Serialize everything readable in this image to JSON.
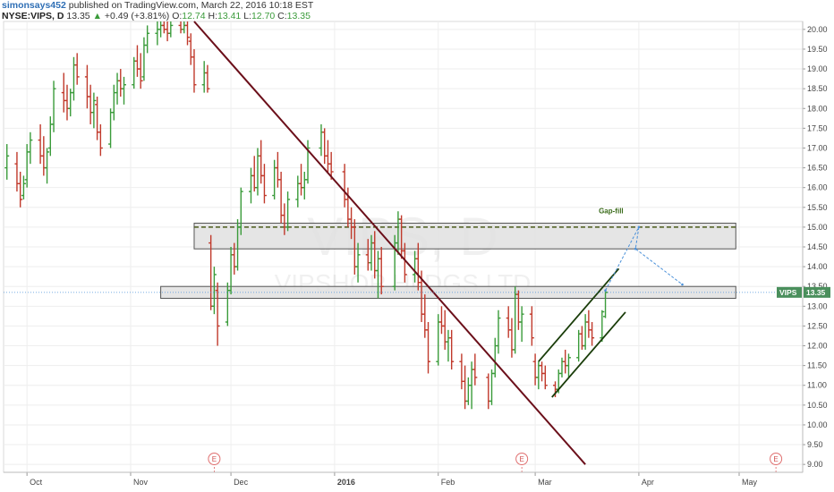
{
  "header": {
    "username": "simonsays452",
    "published_text": " published on TradingView.com, March 22, 2016 10:18 EST",
    "symbol": "NYSE:VIPS, D",
    "last": "13.35",
    "change": "+0.49 (+3.81%)",
    "o_label": "O:",
    "o_value": "12.74",
    "h_label": "H:",
    "h_value": "13.41",
    "l_label": "L:",
    "l_value": "12.70",
    "c_label": "C:",
    "c_value": "13.35"
  },
  "watermark": {
    "symbol": "VIPS, D",
    "name": "VIPSHOP HLDGS LTD"
  },
  "price_label": {
    "symbol": "VIPS",
    "price": "13.35"
  },
  "annotation": {
    "gap_fill": "Gap-fill"
  },
  "event_marker": "E",
  "colors": {
    "up": "#3a9b3a",
    "down": "#c0392b",
    "trendline": "#6b0f1a",
    "channel": "#1a3d0a",
    "zone_fill": "#e0e0e0",
    "projection": "#4a90d9",
    "price_tag": "#4a8f5c"
  },
  "chart_data": {
    "type": "ohlc-bar",
    "title": "",
    "ylim": [
      8.8,
      20.2
    ],
    "xlim": [
      "2015-09-24",
      "2016-05-20"
    ],
    "y_ticks": [
      "9.00",
      "9.50",
      "10.00",
      "10.50",
      "11.00",
      "11.50",
      "12.00",
      "12.50",
      "13.00",
      "13.50",
      "14.00",
      "14.50",
      "15.00",
      "15.50",
      "16.00",
      "16.50",
      "17.00",
      "17.50",
      "18.00",
      "18.50",
      "19.00",
      "19.50",
      "20.00"
    ],
    "x_ticks": [
      {
        "label": "Oct",
        "date": "2015-10-01"
      },
      {
        "label": "Nov",
        "date": "2015-11-01"
      },
      {
        "label": "Dec",
        "date": "2015-12-01"
      },
      {
        "label": "2016",
        "date": "2016-01-01"
      },
      {
        "label": "Feb",
        "date": "2016-02-01"
      },
      {
        "label": "Mar",
        "date": "2016-03-01"
      },
      {
        "label": "Apr",
        "date": "2016-04-01"
      },
      {
        "label": "May",
        "date": "2016-05-01"
      }
    ],
    "series": [
      {
        "date": "2015-09-25",
        "open": 16.5,
        "high": 17.1,
        "low": 16.2,
        "close": 16.8
      },
      {
        "date": "2015-09-28",
        "open": 16.6,
        "high": 16.9,
        "low": 15.9,
        "close": 16.1
      },
      {
        "date": "2015-09-29",
        "open": 16.1,
        "high": 16.4,
        "low": 15.5,
        "close": 15.7
      },
      {
        "date": "2015-09-30",
        "open": 15.8,
        "high": 16.3,
        "low": 15.7,
        "close": 16.1
      },
      {
        "date": "2015-10-01",
        "open": 16.2,
        "high": 17.1,
        "low": 16.0,
        "close": 16.9
      },
      {
        "date": "2015-10-02",
        "open": 16.9,
        "high": 17.4,
        "low": 16.6,
        "close": 17.2
      },
      {
        "date": "2015-10-05",
        "open": 17.2,
        "high": 17.6,
        "low": 16.6,
        "close": 16.8
      },
      {
        "date": "2015-10-06",
        "open": 16.8,
        "high": 17.3,
        "low": 16.3,
        "close": 16.5
      },
      {
        "date": "2015-10-07",
        "open": 16.5,
        "high": 17.0,
        "low": 16.1,
        "close": 16.9
      },
      {
        "date": "2015-10-08",
        "open": 17.0,
        "high": 17.8,
        "low": 16.8,
        "close": 17.6
      },
      {
        "date": "2015-10-09",
        "open": 17.6,
        "high": 18.7,
        "low": 17.4,
        "close": 18.5
      },
      {
        "date": "2015-10-12",
        "open": 18.4,
        "high": 18.9,
        "low": 17.9,
        "close": 18.2
      },
      {
        "date": "2015-10-13",
        "open": 18.2,
        "high": 18.6,
        "low": 17.7,
        "close": 18.0
      },
      {
        "date": "2015-10-14",
        "open": 18.0,
        "high": 18.5,
        "low": 17.8,
        "close": 18.4
      },
      {
        "date": "2015-10-15",
        "open": 18.4,
        "high": 19.3,
        "low": 18.2,
        "close": 19.1
      },
      {
        "date": "2015-10-16",
        "open": 19.1,
        "high": 19.4,
        "low": 18.6,
        "close": 18.8
      },
      {
        "date": "2015-10-19",
        "open": 18.8,
        "high": 19.1,
        "low": 18.0,
        "close": 18.3
      },
      {
        "date": "2015-10-20",
        "open": 18.3,
        "high": 18.6,
        "low": 17.6,
        "close": 17.9
      },
      {
        "date": "2015-10-21",
        "open": 17.9,
        "high": 18.4,
        "low": 17.5,
        "close": 18.2
      },
      {
        "date": "2015-10-22",
        "open": 18.1,
        "high": 18.3,
        "low": 17.2,
        "close": 17.4
      },
      {
        "date": "2015-10-23",
        "open": 17.4,
        "high": 17.6,
        "low": 16.8,
        "close": 17.0
      },
      {
        "date": "2015-10-26",
        "open": 17.1,
        "high": 18.0,
        "low": 17.0,
        "close": 17.9
      },
      {
        "date": "2015-10-27",
        "open": 17.9,
        "high": 18.6,
        "low": 17.7,
        "close": 18.4
      },
      {
        "date": "2015-10-28",
        "open": 18.4,
        "high": 18.9,
        "low": 18.1,
        "close": 18.7
      },
      {
        "date": "2015-10-29",
        "open": 18.7,
        "high": 19.0,
        "low": 18.3,
        "close": 18.5
      },
      {
        "date": "2015-10-30",
        "open": 18.5,
        "high": 18.8,
        "low": 18.1,
        "close": 18.6
      },
      {
        "date": "2015-11-02",
        "open": 18.6,
        "high": 19.3,
        "low": 18.5,
        "close": 19.2
      },
      {
        "date": "2015-11-03",
        "open": 19.2,
        "high": 19.6,
        "low": 18.8,
        "close": 19.0
      },
      {
        "date": "2015-11-04",
        "open": 19.0,
        "high": 19.4,
        "low": 18.5,
        "close": 18.7
      },
      {
        "date": "2015-11-05",
        "open": 18.8,
        "high": 19.8,
        "low": 18.7,
        "close": 19.6
      },
      {
        "date": "2015-11-06",
        "open": 19.6,
        "high": 20.1,
        "low": 19.4,
        "close": 19.9
      },
      {
        "date": "2015-11-09",
        "open": 19.9,
        "high": 20.2,
        "low": 19.6,
        "close": 20.0
      },
      {
        "date": "2015-11-10",
        "open": 20.0,
        "high": 20.2,
        "low": 19.8,
        "close": 20.1
      },
      {
        "date": "2015-11-11",
        "open": 20.1,
        "high": 20.2,
        "low": 19.9,
        "close": 20.0
      },
      {
        "date": "2015-11-12",
        "open": 20.0,
        "high": 20.2,
        "low": 19.7,
        "close": 19.9
      },
      {
        "date": "2015-11-13",
        "open": 19.9,
        "high": 20.2,
        "low": 19.8,
        "close": 20.1
      },
      {
        "date": "2015-11-16",
        "open": 20.1,
        "high": 20.2,
        "low": 19.9,
        "close": 20.0
      },
      {
        "date": "2015-11-17",
        "open": 20.0,
        "high": 20.2,
        "low": 19.9,
        "close": 20.1
      },
      {
        "date": "2015-11-18",
        "open": 20.1,
        "high": 20.2,
        "low": 19.6,
        "close": 19.8
      },
      {
        "date": "2015-11-19",
        "open": 19.7,
        "high": 19.9,
        "low": 19.1,
        "close": 19.3
      },
      {
        "date": "2015-11-20",
        "open": 19.3,
        "high": 19.5,
        "low": 18.4,
        "close": 18.6
      },
      {
        "date": "2015-11-23",
        "open": 18.6,
        "high": 19.2,
        "low": 18.4,
        "close": 18.9
      },
      {
        "date": "2015-11-24",
        "open": 18.9,
        "high": 19.1,
        "low": 18.4,
        "close": 18.5
      },
      {
        "date": "2015-11-25",
        "open": 14.6,
        "high": 14.8,
        "low": 12.9,
        "close": 13.0
      },
      {
        "date": "2015-11-26",
        "open": 13.0,
        "high": 14.0,
        "low": 12.8,
        "close": 13.8
      },
      {
        "date": "2015-11-27",
        "open": 13.4,
        "high": 13.6,
        "low": 12.0,
        "close": 12.5
      },
      {
        "date": "2015-11-30",
        "open": 12.6,
        "high": 13.6,
        "low": 12.5,
        "close": 13.4
      },
      {
        "date": "2015-12-01",
        "open": 13.4,
        "high": 14.5,
        "low": 13.3,
        "close": 14.3
      },
      {
        "date": "2015-12-02",
        "open": 14.3,
        "high": 14.6,
        "low": 13.8,
        "close": 14.0
      },
      {
        "date": "2015-12-03",
        "open": 14.0,
        "high": 15.2,
        "low": 13.9,
        "close": 15.0
      },
      {
        "date": "2015-12-04",
        "open": 15.0,
        "high": 16.0,
        "low": 14.8,
        "close": 15.9
      },
      {
        "date": "2015-12-07",
        "open": 15.9,
        "high": 16.5,
        "low": 15.6,
        "close": 16.3
      },
      {
        "date": "2015-12-08",
        "open": 16.3,
        "high": 16.8,
        "low": 15.9,
        "close": 16.0
      },
      {
        "date": "2015-12-09",
        "open": 16.0,
        "high": 17.0,
        "low": 15.8,
        "close": 16.8
      },
      {
        "date": "2015-12-10",
        "open": 16.8,
        "high": 17.2,
        "low": 16.1,
        "close": 16.3
      },
      {
        "date": "2015-12-11",
        "open": 16.3,
        "high": 16.6,
        "low": 15.6,
        "close": 15.8
      },
      {
        "date": "2015-12-14",
        "open": 15.8,
        "high": 16.7,
        "low": 15.7,
        "close": 16.5
      },
      {
        "date": "2015-12-15",
        "open": 16.5,
        "high": 16.9,
        "low": 16.0,
        "close": 16.2
      },
      {
        "date": "2015-12-16",
        "open": 16.2,
        "high": 16.4,
        "low": 15.1,
        "close": 15.3
      },
      {
        "date": "2015-12-17",
        "open": 15.3,
        "high": 15.6,
        "low": 14.8,
        "close": 15.0
      },
      {
        "date": "2015-12-18",
        "open": 15.0,
        "high": 15.9,
        "low": 14.9,
        "close": 15.7
      },
      {
        "date": "2015-12-21",
        "open": 15.7,
        "high": 16.3,
        "low": 15.5,
        "close": 16.1
      },
      {
        "date": "2015-12-22",
        "open": 16.1,
        "high": 16.6,
        "low": 15.8,
        "close": 16.0
      },
      {
        "date": "2015-12-23",
        "open": 16.0,
        "high": 16.4,
        "low": 15.7,
        "close": 16.2
      },
      {
        "date": "2015-12-24",
        "open": 16.2,
        "high": 17.2,
        "low": 16.1,
        "close": 17.0
      },
      {
        "date": "2015-12-28",
        "open": 17.0,
        "high": 17.6,
        "low": 16.8,
        "close": 17.4
      },
      {
        "date": "2015-12-29",
        "open": 17.4,
        "high": 17.5,
        "low": 16.6,
        "close": 16.8
      },
      {
        "date": "2015-12-30",
        "open": 16.8,
        "high": 17.2,
        "low": 16.4,
        "close": 16.6
      },
      {
        "date": "2015-12-31",
        "open": 16.6,
        "high": 16.9,
        "low": 16.2,
        "close": 16.4
      },
      {
        "date": "2016-01-04",
        "open": 16.4,
        "high": 16.6,
        "low": 15.5,
        "close": 15.7
      },
      {
        "date": "2016-01-05",
        "open": 15.7,
        "high": 16.0,
        "low": 15.0,
        "close": 15.2
      },
      {
        "date": "2016-01-06",
        "open": 15.2,
        "high": 15.5,
        "low": 14.7,
        "close": 15.0
      },
      {
        "date": "2016-01-07",
        "open": 15.0,
        "high": 15.2,
        "low": 13.8,
        "close": 14.0
      },
      {
        "date": "2016-01-08",
        "open": 14.0,
        "high": 14.6,
        "low": 13.6,
        "close": 14.3
      },
      {
        "date": "2016-01-11",
        "open": 14.3,
        "high": 14.7,
        "low": 13.9,
        "close": 14.1
      },
      {
        "date": "2016-01-12",
        "open": 14.1,
        "high": 14.8,
        "low": 13.9,
        "close": 14.6
      },
      {
        "date": "2016-01-13",
        "open": 14.6,
        "high": 14.9,
        "low": 13.7,
        "close": 13.9
      },
      {
        "date": "2016-01-14",
        "open": 13.9,
        "high": 14.4,
        "low": 13.2,
        "close": 14.2
      },
      {
        "date": "2016-01-15",
        "open": 14.2,
        "high": 14.5,
        "low": 13.3,
        "close": 13.5
      },
      {
        "date": "2016-01-19",
        "open": 13.5,
        "high": 14.8,
        "low": 13.4,
        "close": 14.6
      },
      {
        "date": "2016-01-20",
        "open": 14.6,
        "high": 15.4,
        "low": 14.3,
        "close": 15.2
      },
      {
        "date": "2016-01-21",
        "open": 15.2,
        "high": 15.3,
        "low": 14.2,
        "close": 14.4
      },
      {
        "date": "2016-01-22",
        "open": 14.4,
        "high": 14.6,
        "low": 13.6,
        "close": 13.8
      },
      {
        "date": "2016-01-25",
        "open": 13.8,
        "high": 14.4,
        "low": 13.6,
        "close": 14.2
      },
      {
        "date": "2016-01-26",
        "open": 14.2,
        "high": 14.6,
        "low": 13.4,
        "close": 13.6
      },
      {
        "date": "2016-01-27",
        "open": 13.6,
        "high": 13.9,
        "low": 12.6,
        "close": 12.8
      },
      {
        "date": "2016-01-28",
        "open": 12.8,
        "high": 13.3,
        "low": 12.2,
        "close": 12.4
      },
      {
        "date": "2016-01-29",
        "open": 12.4,
        "high": 12.6,
        "low": 11.3,
        "close": 11.6
      },
      {
        "date": "2016-02-01",
        "open": 11.6,
        "high": 12.8,
        "low": 11.5,
        "close": 12.6
      },
      {
        "date": "2016-02-02",
        "open": 12.6,
        "high": 13.0,
        "low": 12.3,
        "close": 12.5
      },
      {
        "date": "2016-02-03",
        "open": 12.5,
        "high": 12.9,
        "low": 11.9,
        "close": 12.1
      },
      {
        "date": "2016-02-04",
        "open": 12.1,
        "high": 12.4,
        "low": 11.6,
        "close": 12.2
      },
      {
        "date": "2016-02-05",
        "open": 12.2,
        "high": 12.4,
        "low": 11.4,
        "close": 11.6
      },
      {
        "date": "2016-02-08",
        "open": 11.6,
        "high": 11.8,
        "low": 10.9,
        "close": 11.1
      },
      {
        "date": "2016-02-09",
        "open": 11.1,
        "high": 11.5,
        "low": 10.4,
        "close": 10.6
      },
      {
        "date": "2016-02-10",
        "open": 10.6,
        "high": 11.2,
        "low": 10.5,
        "close": 11.0
      },
      {
        "date": "2016-02-11",
        "open": 11.0,
        "high": 11.6,
        "low": 10.4,
        "close": 11.4
      },
      {
        "date": "2016-02-12",
        "open": 11.4,
        "high": 11.8,
        "low": 11.0,
        "close": 11.2
      },
      {
        "date": "2016-02-16",
        "open": 11.2,
        "high": 11.3,
        "low": 10.4,
        "close": 10.6
      },
      {
        "date": "2016-02-17",
        "open": 10.6,
        "high": 11.4,
        "low": 10.5,
        "close": 11.3
      },
      {
        "date": "2016-02-18",
        "open": 11.3,
        "high": 12.2,
        "low": 11.2,
        "close": 12.0
      },
      {
        "date": "2016-02-19",
        "open": 12.0,
        "high": 12.9,
        "low": 11.8,
        "close": 12.7
      },
      {
        "date": "2016-02-22",
        "open": 12.7,
        "high": 13.0,
        "low": 12.2,
        "close": 12.4
      },
      {
        "date": "2016-02-23",
        "open": 12.4,
        "high": 12.7,
        "low": 11.7,
        "close": 11.9
      },
      {
        "date": "2016-02-24",
        "open": 11.9,
        "high": 13.5,
        "low": 11.8,
        "close": 13.3
      },
      {
        "date": "2016-02-25",
        "open": 13.3,
        "high": 13.4,
        "low": 12.4,
        "close": 12.6
      },
      {
        "date": "2016-02-26",
        "open": 12.6,
        "high": 13.0,
        "low": 12.1,
        "close": 12.8
      },
      {
        "date": "2016-02-29",
        "open": 12.8,
        "high": 13.0,
        "low": 12.0,
        "close": 12.2
      },
      {
        "date": "2016-03-01",
        "open": 11.6,
        "high": 11.8,
        "low": 11.0,
        "close": 11.2
      },
      {
        "date": "2016-03-02",
        "open": 11.2,
        "high": 11.6,
        "low": 10.9,
        "close": 11.5
      },
      {
        "date": "2016-03-03",
        "open": 11.5,
        "high": 11.6,
        "low": 11.1,
        "close": 11.3
      },
      {
        "date": "2016-03-04",
        "open": 11.3,
        "high": 11.5,
        "low": 10.9,
        "close": 11.0
      },
      {
        "date": "2016-03-07",
        "open": 11.0,
        "high": 11.1,
        "low": 10.7,
        "close": 10.9
      },
      {
        "date": "2016-03-08",
        "open": 10.9,
        "high": 11.4,
        "low": 10.8,
        "close": 11.3
      },
      {
        "date": "2016-03-09",
        "open": 11.3,
        "high": 11.7,
        "low": 11.2,
        "close": 11.6
      },
      {
        "date": "2016-03-10",
        "open": 11.6,
        "high": 11.9,
        "low": 11.3,
        "close": 11.5
      },
      {
        "date": "2016-03-11",
        "open": 11.5,
        "high": 11.8,
        "low": 11.2,
        "close": 11.7
      },
      {
        "date": "2016-03-14",
        "open": 11.7,
        "high": 12.4,
        "low": 11.6,
        "close": 12.3
      },
      {
        "date": "2016-03-15",
        "open": 12.3,
        "high": 12.5,
        "low": 11.9,
        "close": 12.0
      },
      {
        "date": "2016-03-16",
        "open": 12.0,
        "high": 12.8,
        "low": 11.9,
        "close": 12.6
      },
      {
        "date": "2016-03-17",
        "open": 12.6,
        "high": 12.9,
        "low": 12.2,
        "close": 12.4
      },
      {
        "date": "2016-03-18",
        "open": 12.4,
        "high": 12.6,
        "low": 12.0,
        "close": 12.2
      },
      {
        "date": "2016-03-21",
        "open": 12.2,
        "high": 12.9,
        "low": 12.1,
        "close": 12.86
      },
      {
        "date": "2016-03-22",
        "open": 12.74,
        "high": 13.41,
        "low": 12.7,
        "close": 13.35
      }
    ],
    "zones": [
      {
        "name": "upper",
        "start": "2015-11-20",
        "end": "2016-04-30",
        "low": 14.45,
        "high": 15.1,
        "midline": 15.0
      },
      {
        "name": "lower",
        "start": "2015-11-10",
        "end": "2016-04-30",
        "low": 13.2,
        "high": 13.5
      }
    ],
    "trendline": {
      "from": {
        "date": "2015-11-20",
        "price": 20.2
      },
      "to": {
        "date": "2016-03-16",
        "price": 9.0
      }
    },
    "channel": [
      {
        "from": {
          "date": "2016-03-02",
          "price": 11.6
        },
        "to": {
          "date": "2016-03-26",
          "price": 13.95
        }
      },
      {
        "from": {
          "date": "2016-03-06",
          "price": 10.7
        },
        "to": {
          "date": "2016-03-28",
          "price": 12.85
        }
      }
    ],
    "projection": [
      {
        "date": "2016-03-22",
        "price": 13.4
      },
      {
        "date": "2016-04-01",
        "price": 15.0
      },
      {
        "date": "2016-03-31",
        "price": 14.45
      },
      {
        "date": "2016-04-14",
        "price": 13.55
      }
    ],
    "events": [
      "2015-11-26",
      "2016-02-26",
      "2016-05-12"
    ],
    "current_price": 13.35
  }
}
